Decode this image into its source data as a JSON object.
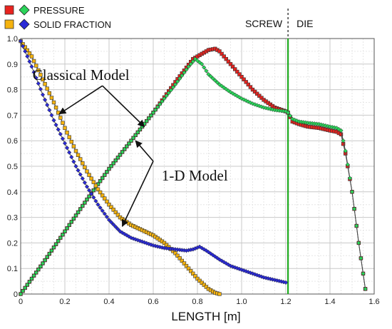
{
  "chart_data": {
    "type": "line",
    "xlabel": "LENGTH [m]",
    "ylabel": "",
    "xlim": [
      0,
      1.6
    ],
    "ylim": [
      0,
      1.0
    ],
    "x_ticks": [
      "0",
      "0.2",
      "0.4",
      "0.6",
      "0.8",
      "1.0",
      "1.2",
      "1.4",
      "1.6"
    ],
    "y_ticks": [
      "0",
      "0.1",
      "0.2",
      "0.3",
      "0.4",
      "0.5",
      "0.6",
      "0.7",
      "0.8",
      "0.9",
      "1.0"
    ],
    "grid": true,
    "legend": {
      "placement": "top-left",
      "entries": [
        {
          "label": "PRESSURE",
          "markers": [
            "square",
            "diamond"
          ],
          "colors": [
            "#e8231f",
            "#2bd45a"
          ]
        },
        {
          "label": "SOLID FRACTION",
          "markers": [
            "square",
            "diamond"
          ],
          "colors": [
            "#f5b30f",
            "#2a2ad6"
          ]
        }
      ]
    },
    "regions": [
      {
        "label": "SCREW",
        "x_end": 1.21
      },
      {
        "label": "DIE",
        "x_start": 1.21
      }
    ],
    "boundary_x": 1.21,
    "boundary_color": "#1faa1f",
    "annotations": [
      {
        "text": "Classical Model",
        "at": [
          0.37,
          0.875
        ]
      },
      {
        "text": "1-D Model",
        "at": [
          0.73,
          0.48
        ]
      }
    ],
    "series": [
      {
        "name": "PRESSURE",
        "model": "classical",
        "marker": "square",
        "color": "#e8231f",
        "x": [
          0,
          0.05,
          0.1,
          0.2,
          0.3,
          0.4,
          0.5,
          0.6,
          0.7,
          0.78,
          0.85,
          0.88,
          0.9,
          0.95,
          1.0,
          1.05,
          1.1,
          1.15,
          1.2,
          1.21,
          1.23,
          1.26,
          1.3,
          1.35,
          1.4,
          1.43,
          1.45,
          1.47,
          1.5,
          1.53,
          1.56
        ],
        "y": [
          0,
          0.06,
          0.12,
          0.245,
          0.37,
          0.49,
          0.6,
          0.71,
          0.83,
          0.92,
          0.955,
          0.96,
          0.95,
          0.9,
          0.85,
          0.8,
          0.76,
          0.73,
          0.715,
          0.71,
          0.675,
          0.665,
          0.655,
          0.65,
          0.64,
          0.635,
          0.625,
          0.55,
          0.4,
          0.2,
          0.02
        ]
      },
      {
        "name": "PRESSURE",
        "model": "1-D",
        "marker": "diamond",
        "color": "#2bd45a",
        "x": [
          0,
          0.05,
          0.1,
          0.2,
          0.3,
          0.4,
          0.5,
          0.6,
          0.7,
          0.76,
          0.79,
          0.82,
          0.85,
          0.9,
          0.95,
          1.0,
          1.05,
          1.1,
          1.15,
          1.2,
          1.21,
          1.23,
          1.26,
          1.3,
          1.35,
          1.4,
          1.43,
          1.45,
          1.47,
          1.5,
          1.53,
          1.56
        ],
        "y": [
          0,
          0.06,
          0.12,
          0.245,
          0.37,
          0.49,
          0.6,
          0.71,
          0.82,
          0.89,
          0.92,
          0.9,
          0.86,
          0.82,
          0.79,
          0.765,
          0.745,
          0.73,
          0.72,
          0.715,
          0.71,
          0.685,
          0.675,
          0.67,
          0.665,
          0.655,
          0.65,
          0.64,
          0.56,
          0.4,
          0.2,
          0.02
        ]
      },
      {
        "name": "SOLID FRACTION",
        "model": "classical",
        "marker": "square",
        "color": "#f5b30f",
        "x": [
          0,
          0.05,
          0.1,
          0.15,
          0.2,
          0.25,
          0.3,
          0.35,
          0.4,
          0.45,
          0.5,
          0.55,
          0.6,
          0.65,
          0.7,
          0.75,
          0.8,
          0.85,
          0.88,
          0.9
        ],
        "y": [
          0.99,
          0.93,
          0.84,
          0.75,
          0.65,
          0.56,
          0.48,
          0.41,
          0.35,
          0.3,
          0.27,
          0.25,
          0.23,
          0.2,
          0.16,
          0.11,
          0.06,
          0.02,
          0.005,
          0
        ]
      },
      {
        "name": "SOLID FRACTION",
        "model": "1-D",
        "marker": "diamond",
        "color": "#2a2ad6",
        "x": [
          0,
          0.05,
          0.1,
          0.15,
          0.2,
          0.25,
          0.3,
          0.35,
          0.4,
          0.45,
          0.5,
          0.55,
          0.6,
          0.65,
          0.7,
          0.75,
          0.78,
          0.81,
          0.84,
          0.9,
          0.95,
          1.0,
          1.05,
          1.1,
          1.15,
          1.2
        ],
        "y": [
          0.99,
          0.89,
          0.78,
          0.68,
          0.59,
          0.5,
          0.42,
          0.35,
          0.29,
          0.245,
          0.22,
          0.205,
          0.19,
          0.18,
          0.175,
          0.17,
          0.175,
          0.185,
          0.17,
          0.135,
          0.11,
          0.095,
          0.08,
          0.065,
          0.055,
          0.045
        ]
      }
    ]
  }
}
